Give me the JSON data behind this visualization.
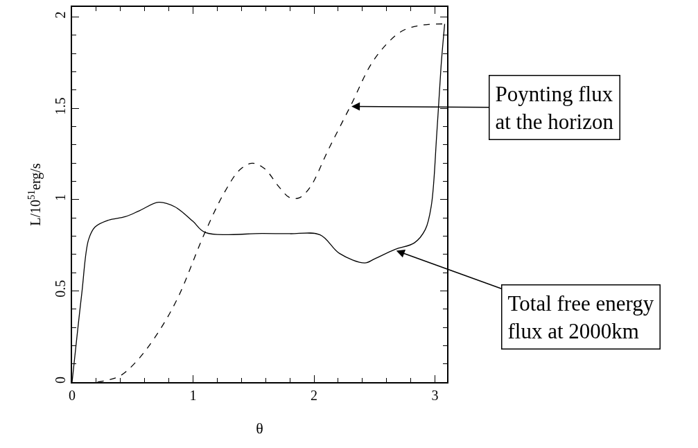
{
  "chart_data": {
    "type": "line",
    "xlabel": "θ",
    "ylabel": "L/10$^{51}$erg/s",
    "xlim": [
      0,
      3.1
    ],
    "ylim": [
      0,
      2.055
    ],
    "xticks": [
      0,
      1,
      2,
      3
    ],
    "yticks": [
      0,
      0.5,
      1,
      1.5,
      2
    ],
    "legend": false,
    "marker": "none",
    "series": [
      {
        "color": "#000000",
        "line_style": "solid",
        "x": [
          0,
          0.08,
          0.136,
          0.19,
          0.3,
          0.44,
          0.56,
          0.716,
          0.85,
          1.0,
          1.1,
          1.576,
          1.8,
          2.05,
          2.21,
          2.42,
          2.5,
          2.67,
          2.83,
          2.92,
          2.97,
          3.015,
          3.05,
          3.08
        ],
        "values": [
          0,
          0.485,
          0.78,
          0.85,
          0.887,
          0.906,
          0.94,
          0.985,
          0.96,
          0.88,
          0.82,
          0.814,
          0.813,
          0.807,
          0.705,
          0.653,
          0.675,
          0.727,
          0.763,
          0.836,
          0.968,
          1.363,
          1.728,
          1.962
        ]
      },
      {
        "color": "#000000",
        "line_style": "dashed",
        "x": [
          0.21,
          0.39,
          0.52,
          0.69,
          0.87,
          1.09,
          1.26,
          1.39,
          1.49,
          1.59,
          1.71,
          1.8,
          1.88,
          1.97,
          2.12,
          2.3,
          2.5,
          2.72,
          2.89,
          3.08
        ],
        "values": [
          0,
          0.032,
          0.105,
          0.25,
          0.456,
          0.807,
          1.04,
          1.165,
          1.199,
          1.17,
          1.07,
          1.01,
          1.01,
          1.07,
          1.275,
          1.51,
          1.77,
          1.92,
          1.955,
          1.962
        ]
      }
    ],
    "annotations": [
      {
        "text": "Poynting flux\nat the horizon",
        "x": 2.31,
        "y": 1.51
      },
      {
        "text": "Total free energy\nflux at 2000km",
        "x": 2.68,
        "y": 0.72
      }
    ]
  }
}
